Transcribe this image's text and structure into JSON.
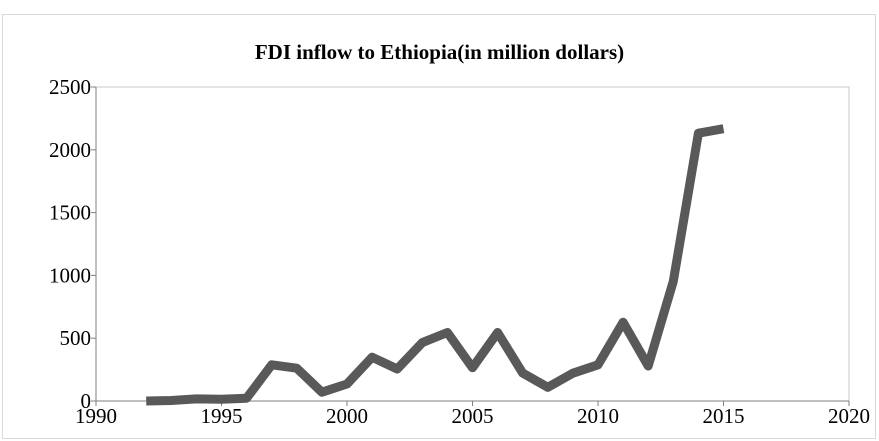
{
  "chart_data": {
    "type": "line",
    "title": "FDI inflow to Ethiopia(in million dollars)",
    "xlabel": "",
    "ylabel": "",
    "xlim": [
      1990,
      2020
    ],
    "ylim": [
      0,
      2500
    ],
    "xticks": [
      1990,
      1995,
      2000,
      2005,
      2010,
      2015,
      2020
    ],
    "yticks": [
      0,
      500,
      1000,
      1500,
      2000,
      2500
    ],
    "grid": false,
    "legend": "none",
    "series": [
      {
        "color": "#595959",
        "x": [
          1992,
          1993,
          1994,
          1995,
          1996,
          1997,
          1998,
          1999,
          2000,
          2001,
          2002,
          2003,
          2004,
          2005,
          2006,
          2007,
          2008,
          2009,
          2010,
          2011,
          2012,
          2013,
          2014,
          2015
        ],
        "values": [
          0,
          4,
          17,
          14,
          22,
          288,
          261,
          70,
          135,
          349,
          255,
          465,
          545,
          265,
          545,
          222,
          109,
          221,
          288,
          627,
          279,
          953,
          2132,
          2168
        ]
      }
    ]
  }
}
